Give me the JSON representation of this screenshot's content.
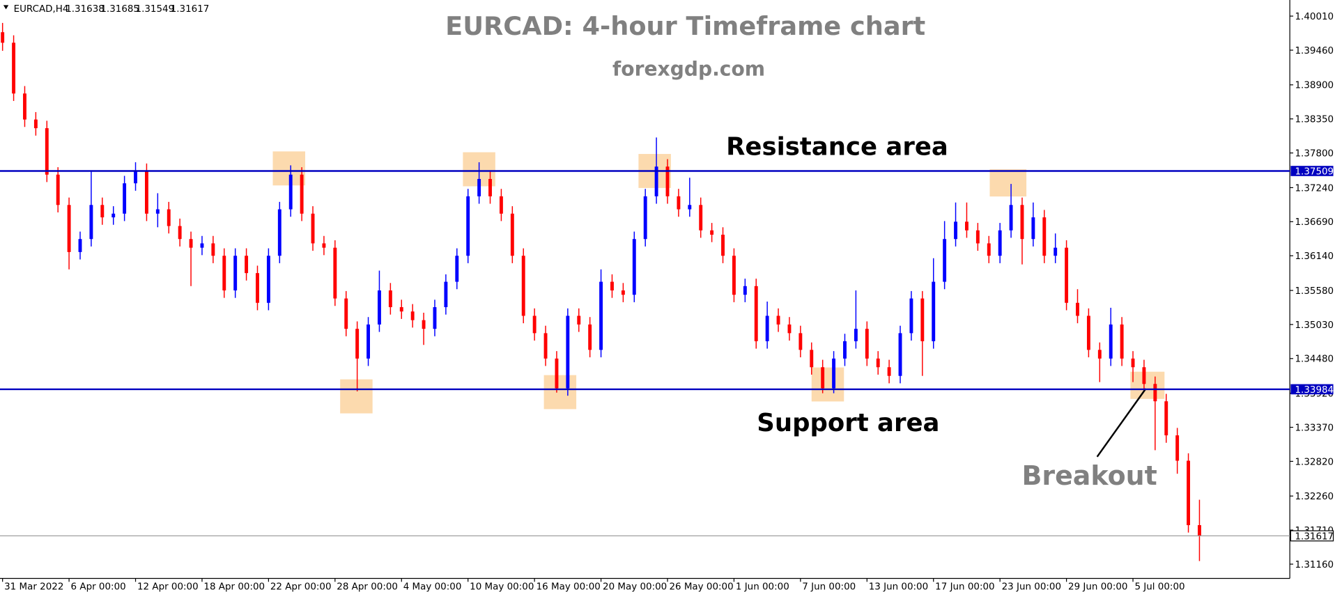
{
  "chart_data": {
    "type": "candlestick",
    "symbol": "EURCAD,H4",
    "ohlc_header": [
      1.31638,
      1.31685,
      1.31549,
      1.31617
    ],
    "title": "EURCAD: 4-hour Timeframe chart",
    "subtitle": "forexgdp.com",
    "annotations": [
      "Resistance area",
      "Support area",
      "Breakout"
    ],
    "up_color": "#0000ff",
    "down_color": "#ff0000",
    "hline_color": "#0000c0",
    "hlines": [
      1.37509,
      1.33984
    ],
    "last_price": 1.31617,
    "ylim": [
      1.3093,
      1.4027
    ],
    "yticks": [
      {
        "value": 1.4001,
        "label": "1.40010"
      },
      {
        "value": 1.3946,
        "label": "1.39460"
      },
      {
        "value": 1.389,
        "label": "1.38900"
      },
      {
        "value": 1.3835,
        "label": "1.38350"
      },
      {
        "value": 1.378,
        "label": "1.37800"
      },
      {
        "value": 1.3724,
        "label": "1.37240"
      },
      {
        "value": 1.3669,
        "label": "1.36690"
      },
      {
        "value": 1.3614,
        "label": "1.36140"
      },
      {
        "value": 1.3558,
        "label": "1.35580"
      },
      {
        "value": 1.3503,
        "label": "1.35030"
      },
      {
        "value": 1.3448,
        "label": "1.34480"
      },
      {
        "value": 1.3392,
        "label": "1.33920"
      },
      {
        "value": 1.3337,
        "label": "1.33370"
      },
      {
        "value": 1.3282,
        "label": "1.32820"
      },
      {
        "value": 1.3226,
        "label": "1.32260"
      },
      {
        "value": 1.3171,
        "label": "1.31710"
      },
      {
        "value": 1.3116,
        "label": "1.31160"
      }
    ],
    "xticks": [
      {
        "value": 0,
        "label": "31 Mar 2022"
      },
      {
        "value": 6,
        "label": "6 Apr 00:00"
      },
      {
        "value": 12,
        "label": "12 Apr 00:00"
      },
      {
        "value": 18,
        "label": "18 Apr 00:00"
      },
      {
        "value": 24,
        "label": "22 Apr 00:00"
      },
      {
        "value": 30,
        "label": "28 Apr 00:00"
      },
      {
        "value": 36,
        "label": "4 May 00:00"
      },
      {
        "value": 42,
        "label": "10 May 00:00"
      },
      {
        "value": 48,
        "label": "16 May 00:00"
      },
      {
        "value": 54,
        "label": "20 May 00:00"
      },
      {
        "value": 60,
        "label": "26 May 00:00"
      },
      {
        "value": 66,
        "label": "1 Jun 00:00"
      },
      {
        "value": 72,
        "label": "7 Jun 00:00"
      },
      {
        "value": 78,
        "label": "13 Jun 00:00"
      },
      {
        "value": 84,
        "label": "17 Jun 00:00"
      },
      {
        "value": 90,
        "label": "23 Jun 00:00"
      },
      {
        "value": 96,
        "label": "29 Jun 00:00"
      },
      {
        "value": 102,
        "label": "5 Jul 00:00"
      }
    ],
    "open": [
      1.3975,
      1.3958,
      1.3876,
      1.3834,
      1.382,
      1.3745,
      1.3696,
      1.362,
      1.3641,
      1.3696,
      1.3676,
      1.3682,
      1.3731,
      1.3751,
      1.3682,
      1.3689,
      1.3662,
      1.3641,
      1.3627,
      1.3634,
      1.3614,
      1.3558,
      1.3614,
      1.3586,
      1.3538,
      1.3614,
      1.3689,
      1.3745,
      1.3682,
      1.3634,
      1.3627,
      1.3545,
      1.3496,
      1.3448,
      1.3503,
      1.3558,
      1.3531,
      1.3524,
      1.351,
      1.3496,
      1.3531,
      1.3572,
      1.3614,
      1.371,
      1.3738,
      1.371,
      1.3682,
      1.3614,
      1.3517,
      1.3489,
      1.3448,
      1.34,
      1.3517,
      1.3503,
      1.3462,
      1.3572,
      1.3558,
      1.3551,
      1.3641,
      1.371,
      1.3758,
      1.371,
      1.3689,
      1.3696,
      1.3655,
      1.3648,
      1.3614,
      1.3551,
      1.3565,
      1.3476,
      1.3517,
      1.3503,
      1.3489,
      1.3462,
      1.3434,
      1.34,
      1.3448,
      1.3476,
      1.3496,
      1.3448,
      1.3434,
      1.342,
      1.3489,
      1.3545,
      1.3476,
      1.3572,
      1.3641,
      1.3669,
      1.3655,
      1.3634,
      1.3614,
      1.3655,
      1.3696,
      1.3641,
      1.3676,
      1.3614,
      1.3627,
      1.3538,
      1.3517,
      1.3462,
      1.3448,
      1.3503,
      1.3448,
      1.3434,
      1.3407,
      1.3379,
      1.3324,
      1.3283,
      1.3179
    ],
    "high": [
      1.399,
      1.397,
      1.3888,
      1.3846,
      1.3832,
      1.3757,
      1.3708,
      1.3653,
      1.3752,
      1.3708,
      1.3694,
      1.3743,
      1.3765,
      1.3763,
      1.3715,
      1.3701,
      1.3674,
      1.3653,
      1.3646,
      1.3646,
      1.3626,
      1.3626,
      1.3626,
      1.3598,
      1.3626,
      1.3701,
      1.376,
      1.3757,
      1.3694,
      1.3646,
      1.3639,
      1.3557,
      1.3508,
      1.3515,
      1.359,
      1.357,
      1.3543,
      1.3536,
      1.3522,
      1.3543,
      1.3584,
      1.3626,
      1.3722,
      1.3765,
      1.375,
      1.3722,
      1.3694,
      1.3626,
      1.3529,
      1.3501,
      1.346,
      1.3529,
      1.3529,
      1.3515,
      1.3592,
      1.3584,
      1.357,
      1.3653,
      1.3722,
      1.3805,
      1.377,
      1.3722,
      1.374,
      1.3708,
      1.3667,
      1.366,
      1.3626,
      1.3577,
      1.3577,
      1.354,
      1.3529,
      1.3515,
      1.3501,
      1.3474,
      1.3446,
      1.346,
      1.3488,
      1.3558,
      1.3508,
      1.346,
      1.3446,
      1.3501,
      1.3557,
      1.3557,
      1.361,
      1.367,
      1.37,
      1.37,
      1.3667,
      1.3646,
      1.3667,
      1.373,
      1.3708,
      1.37,
      1.3688,
      1.365,
      1.3639,
      1.356,
      1.3529,
      1.3474,
      1.353,
      1.3515,
      1.346,
      1.3446,
      1.3419,
      1.3391,
      1.3336,
      1.3295,
      1.322
    ],
    "low": [
      1.3945,
      1.3864,
      1.3822,
      1.3808,
      1.3733,
      1.3684,
      1.3592,
      1.3608,
      1.3629,
      1.3664,
      1.3664,
      1.367,
      1.3719,
      1.367,
      1.366,
      1.365,
      1.3629,
      1.3565,
      1.3615,
      1.3602,
      1.3546,
      1.3546,
      1.3574,
      1.3526,
      1.3526,
      1.3602,
      1.3677,
      1.367,
      1.3622,
      1.3615,
      1.3533,
      1.3484,
      1.3395,
      1.3436,
      1.3491,
      1.3519,
      1.3512,
      1.3498,
      1.347,
      1.3484,
      1.3519,
      1.356,
      1.3602,
      1.3698,
      1.3698,
      1.367,
      1.3602,
      1.3505,
      1.3477,
      1.3436,
      1.3393,
      1.3388,
      1.3491,
      1.345,
      1.345,
      1.3546,
      1.3539,
      1.3539,
      1.3629,
      1.3698,
      1.3698,
      1.3677,
      1.3677,
      1.3643,
      1.3636,
      1.3602,
      1.3539,
      1.3539,
      1.3464,
      1.3464,
      1.3491,
      1.3477,
      1.345,
      1.3422,
      1.3392,
      1.3392,
      1.3436,
      1.3464,
      1.3436,
      1.3422,
      1.3408,
      1.3408,
      1.3477,
      1.342,
      1.3464,
      1.356,
      1.3629,
      1.3643,
      1.3622,
      1.3602,
      1.3602,
      1.3643,
      1.36,
      1.3629,
      1.3602,
      1.3602,
      1.3526,
      1.3505,
      1.345,
      1.341,
      1.3436,
      1.3436,
      1.341,
      1.3395,
      1.33,
      1.3312,
      1.3262,
      1.3167,
      1.3121
    ],
    "close": [
      1.3958,
      1.3876,
      1.3834,
      1.382,
      1.3745,
      1.3696,
      1.362,
      1.3641,
      1.3696,
      1.3676,
      1.3682,
      1.3731,
      1.3751,
      1.3682,
      1.3689,
      1.3662,
      1.3641,
      1.3627,
      1.3634,
      1.3614,
      1.3558,
      1.3614,
      1.3586,
      1.3538,
      1.3614,
      1.3689,
      1.3745,
      1.3682,
      1.3634,
      1.3627,
      1.3545,
      1.3496,
      1.3448,
      1.3503,
      1.3558,
      1.3531,
      1.3524,
      1.351,
      1.3496,
      1.3531,
      1.3572,
      1.3614,
      1.371,
      1.3738,
      1.371,
      1.3682,
      1.3614,
      1.3517,
      1.3489,
      1.3448,
      1.34,
      1.3517,
      1.3503,
      1.3462,
      1.3572,
      1.3558,
      1.3551,
      1.3641,
      1.371,
      1.3758,
      1.371,
      1.3689,
      1.3696,
      1.3655,
      1.3648,
      1.3614,
      1.3551,
      1.3565,
      1.3476,
      1.3517,
      1.3503,
      1.3489,
      1.3462,
      1.3434,
      1.34,
      1.3448,
      1.3476,
      1.3496,
      1.3448,
      1.3434,
      1.342,
      1.3489,
      1.3545,
      1.3476,
      1.3572,
      1.3641,
      1.3669,
      1.3655,
      1.3634,
      1.3614,
      1.3655,
      1.3696,
      1.3641,
      1.3676,
      1.3614,
      1.3627,
      1.3538,
      1.3517,
      1.3462,
      1.3448,
      1.3503,
      1.3448,
      1.3434,
      1.3407,
      1.3379,
      1.3324,
      1.3283,
      1.3179,
      1.3162
    ]
  }
}
